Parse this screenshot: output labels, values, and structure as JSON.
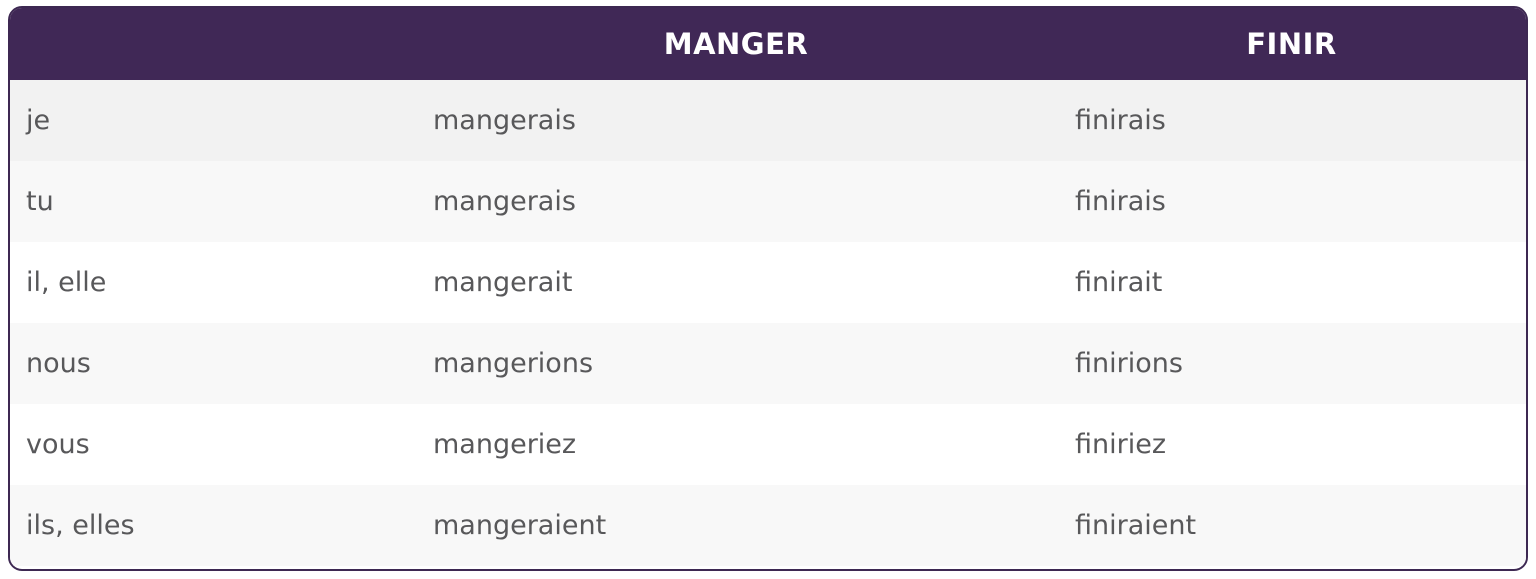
{
  "table": {
    "columns": [
      "MANGER",
      "FINIR"
    ],
    "rows": [
      [
        "je",
        "mangerais",
        "finirais"
      ],
      [
        "tu",
        "mangerais",
        "finirais"
      ],
      [
        "il, elle",
        "mangerait",
        "finirait"
      ],
      [
        "nous",
        "mangerions",
        "finirions"
      ],
      [
        "vous",
        "mangeriez",
        "finiriez"
      ],
      [
        "ils, elles",
        "mangeraient",
        "finiraient"
      ]
    ]
  }
}
